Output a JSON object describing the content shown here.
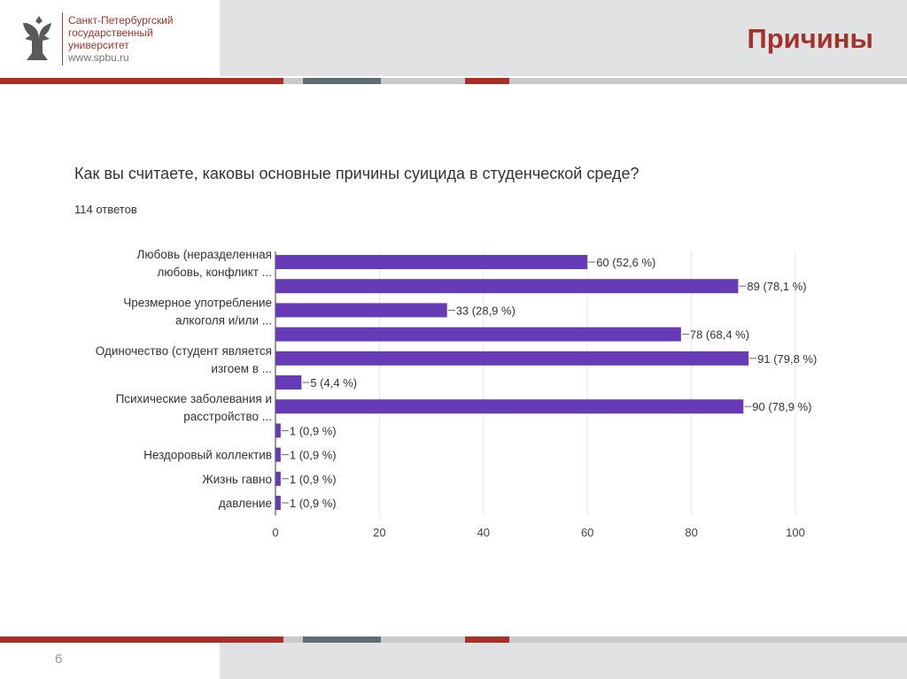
{
  "header": {
    "university_lines": [
      "Санкт-Петербургский",
      "государственный",
      "университет"
    ],
    "url": "www.spbu.ru",
    "title": "Причины"
  },
  "question": "Как вы считаете, каковы основные причины суицида в студенческой среде?",
  "answers_count": "114 ответов",
  "footer": {
    "page_number": "6"
  },
  "colors": {
    "bar": "#673ab7",
    "accent": "#a3322b"
  },
  "chart_data": {
    "type": "bar",
    "orientation": "horizontal",
    "categories": [
      "Любовь (неразделенная любовь, конфликт ...",
      "",
      "Чрезмерное употребление алкоголя и/или ...",
      "",
      "Одиночество (студент является изгоем в ...",
      "",
      "Психические заболевания и расстройство ...",
      "",
      "Нездоровый коллектив",
      "Жизнь гавно",
      "давление"
    ],
    "category_label_lines": [
      [
        "Любовь (неразделенная",
        "любовь, конфликт ..."
      ],
      [],
      [
        "Чрезмерное употребление",
        "алкоголя и/или ..."
      ],
      [],
      [
        "Одиночество (студент является",
        "изгоем в ..."
      ],
      [],
      [
        "Психические заболевания и",
        "расстройство ..."
      ],
      [],
      [
        "Нездоровый коллектив"
      ],
      [
        "Жизнь гавно"
      ],
      [
        "давление"
      ]
    ],
    "values": [
      60,
      89,
      33,
      78,
      91,
      5,
      90,
      1,
      1,
      1,
      1
    ],
    "data_labels": [
      "60 (52,6 %)",
      "89 (78,1 %)",
      "33 (28,9 %)",
      "78 (68,4 %)",
      "91 (79,8 %)",
      "5 (4,4 %)",
      "90 (78,9 %)",
      "1 (0,9 %)",
      "1 (0,9 %)",
      "1 (0,9 %)",
      "1 (0,9 %)"
    ],
    "xlim": [
      0,
      100
    ],
    "xticks": [
      "0",
      "20",
      "40",
      "60",
      "80",
      "100"
    ],
    "grid": true,
    "title": "",
    "xlabel": "",
    "ylabel": ""
  }
}
